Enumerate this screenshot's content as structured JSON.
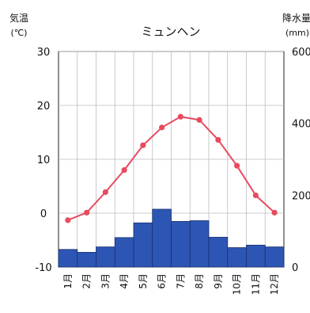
{
  "chart_data": {
    "type": "bar+line",
    "title": "ミュンヘン",
    "categories": [
      "1月",
      "2月",
      "3月",
      "4月",
      "5月",
      "6月",
      "7月",
      "8月",
      "9月",
      "10月",
      "11月",
      "12月"
    ],
    "left_axis": {
      "label_line1": "気温",
      "label_line2": "(℃)",
      "range": [
        -10,
        30
      ],
      "ticks": [
        30,
        20,
        10,
        0,
        -10
      ]
    },
    "right_axis": {
      "label_line1": "降水量",
      "label_line2": "(mm)",
      "range": [
        0,
        600
      ],
      "ticks": [
        600,
        400,
        200,
        0
      ]
    },
    "series": [
      {
        "kind": "bar",
        "axis": "right",
        "color": "#2d56b4",
        "values": [
          49,
          41,
          56,
          82,
          123,
          161,
          127,
          129,
          83,
          54,
          61,
          56
        ]
      },
      {
        "kind": "line",
        "axis": "left",
        "color": "#e84a5f",
        "values": [
          -1.3,
          0.1,
          3.9,
          8.0,
          12.6,
          15.9,
          17.9,
          17.3,
          13.6,
          8.8,
          3.3,
          0.1
        ]
      }
    ],
    "grid": true,
    "legend": "none"
  }
}
